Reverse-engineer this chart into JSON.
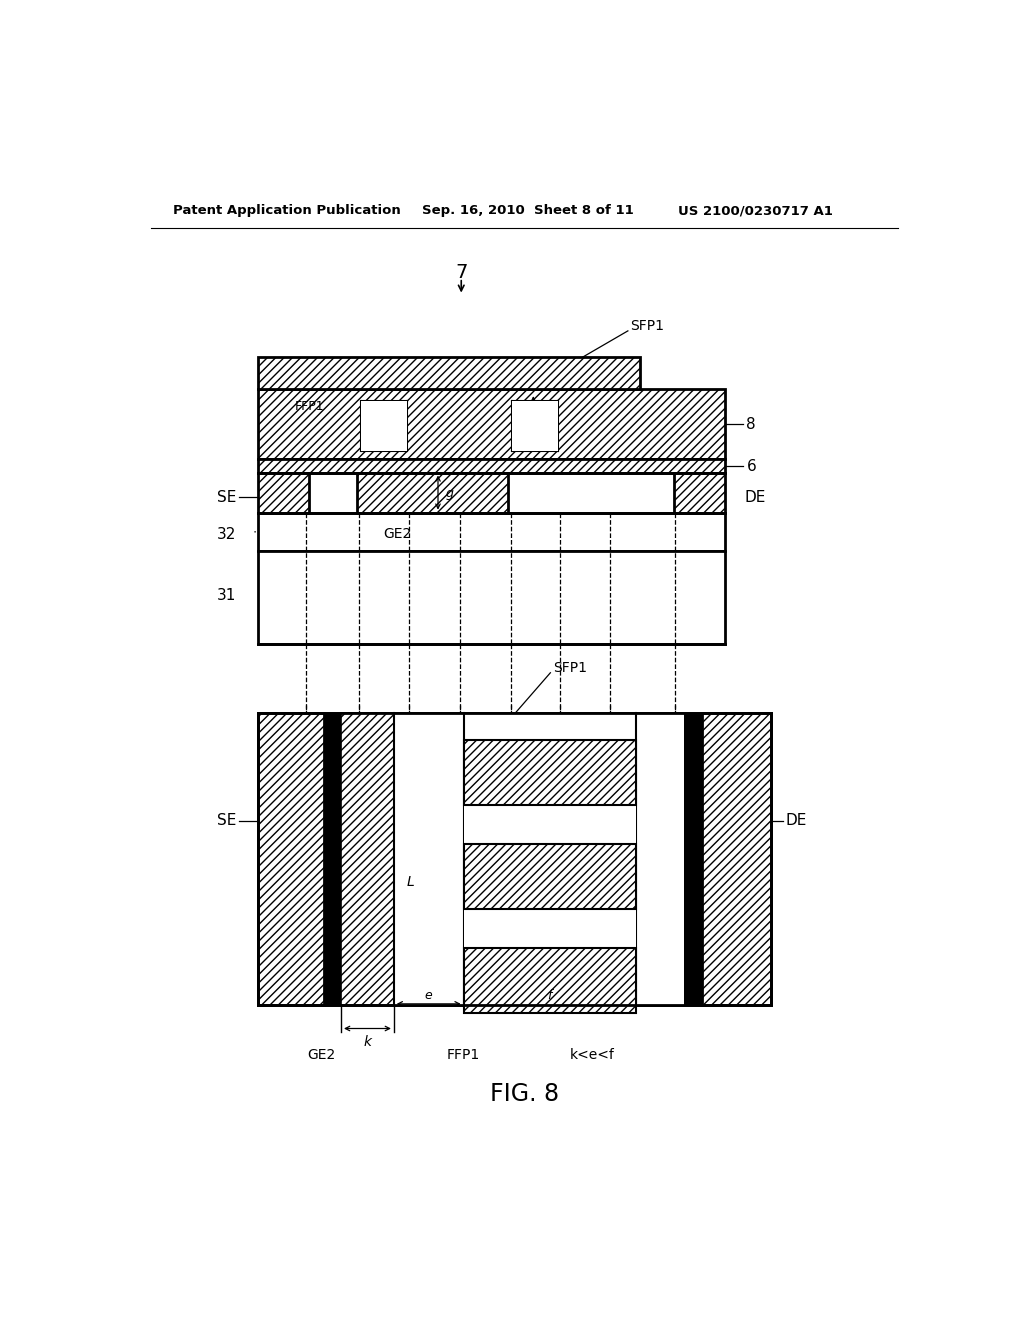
{
  "bg_color": "#ffffff",
  "header_left": "Patent Application Publication",
  "header_mid": "Sep. 16, 2010  Sheet 8 of 11",
  "header_right": "US 2100/0230717 A1",
  "fig_label": "FIG. 8",
  "hatch": "////",
  "lw_thick": 2.0,
  "lw_med": 1.5,
  "lw_thin": 1.0
}
